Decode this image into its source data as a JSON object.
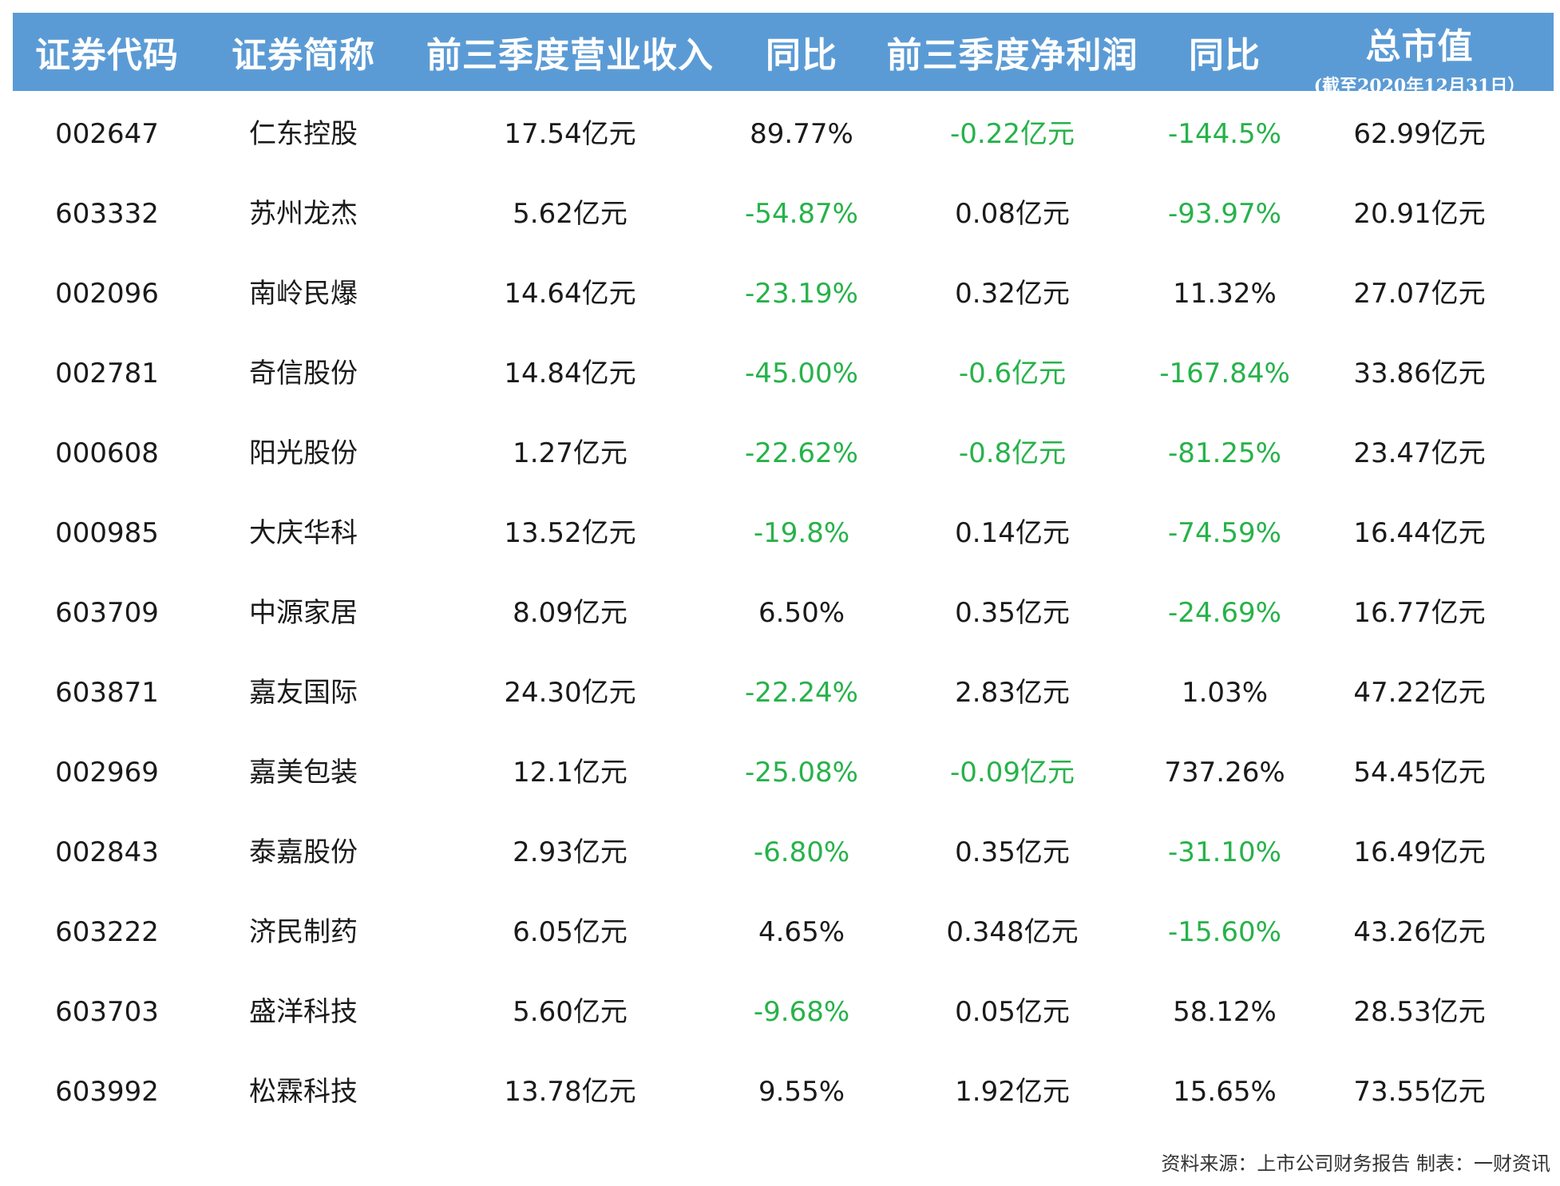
{
  "header": {
    "code": "证券代码",
    "name": "证券简称",
    "revenue": "前三季度营业收入",
    "revenue_yoy": "同比",
    "profit": "前三季度净利润",
    "profit_yoy": "同比",
    "market_cap": "总市值",
    "market_cap_note": "(截至2020年12月31日）"
  },
  "rows": [
    {
      "code": "002647",
      "name": "仁东控股",
      "revenue": "17.54亿元",
      "revenue_yoy": "89.77%",
      "profit": "-0.22亿元",
      "profit_yoy": "-144.5%",
      "market_cap": "62.99亿元"
    },
    {
      "code": "603332",
      "name": "苏州龙杰",
      "revenue": "5.62亿元",
      "revenue_yoy": "-54.87%",
      "profit": "0.08亿元",
      "profit_yoy": "-93.97%",
      "market_cap": "20.91亿元"
    },
    {
      "code": "002096",
      "name": "南岭民爆",
      "revenue": "14.64亿元",
      "revenue_yoy": "-23.19%",
      "profit": "0.32亿元",
      "profit_yoy": "11.32%",
      "market_cap": "27.07亿元"
    },
    {
      "code": "002781",
      "name": "奇信股份",
      "revenue": "14.84亿元",
      "revenue_yoy": "-45.00%",
      "profit": "-0.6亿元",
      "profit_yoy": "-167.84%",
      "market_cap": "33.86亿元"
    },
    {
      "code": "000608",
      "name": "阳光股份",
      "revenue": "1.27亿元",
      "revenue_yoy": "-22.62%",
      "profit": "-0.8亿元",
      "profit_yoy": "-81.25%",
      "market_cap": "23.47亿元"
    },
    {
      "code": "000985",
      "name": "大庆华科",
      "revenue": "13.52亿元",
      "revenue_yoy": "-19.8%",
      "profit": "0.14亿元",
      "profit_yoy": "-74.59%",
      "market_cap": "16.44亿元"
    },
    {
      "code": "603709",
      "name": "中源家居",
      "revenue": "8.09亿元",
      "revenue_yoy": "6.50%",
      "profit": "0.35亿元",
      "profit_yoy": "-24.69%",
      "market_cap": "16.77亿元"
    },
    {
      "code": "603871",
      "name": "嘉友国际",
      "revenue": "24.30亿元",
      "revenue_yoy": "-22.24%",
      "profit": "2.83亿元",
      "profit_yoy": "1.03%",
      "market_cap": "47.22亿元"
    },
    {
      "code": "002969",
      "name": "嘉美包装",
      "revenue": "12.1亿元",
      "revenue_yoy": "-25.08%",
      "profit": "-0.09亿元",
      "profit_yoy": "737.26%",
      "market_cap": "54.45亿元"
    },
    {
      "code": "002843",
      "name": "泰嘉股份",
      "revenue": "2.93亿元",
      "revenue_yoy": "-6.80%",
      "profit": "0.35亿元",
      "profit_yoy": "-31.10%",
      "market_cap": "16.49亿元"
    },
    {
      "code": "603222",
      "name": "济民制药",
      "revenue": "6.05亿元",
      "revenue_yoy": "4.65%",
      "profit": "0.348亿元",
      "profit_yoy": "-15.60%",
      "market_cap": "43.26亿元"
    },
    {
      "code": "603703",
      "name": "盛洋科技",
      "revenue": "5.60亿元",
      "revenue_yoy": "-9.68%",
      "profit": "0.05亿元",
      "profit_yoy": "58.12%",
      "market_cap": "28.53亿元"
    },
    {
      "code": "603992",
      "name": "松霖科技",
      "revenue": "13.78亿元",
      "revenue_yoy": "9.55%",
      "profit": "1.92亿元",
      "profit_yoy": "15.65%",
      "market_cap": "73.55亿元"
    }
  ],
  "footer": "资料来源：上市公司财务报告  制表：一财资讯",
  "colors": {
    "header_bg": "#5b9bd5",
    "negative": "#27b24a",
    "text": "#1a1a1a"
  }
}
